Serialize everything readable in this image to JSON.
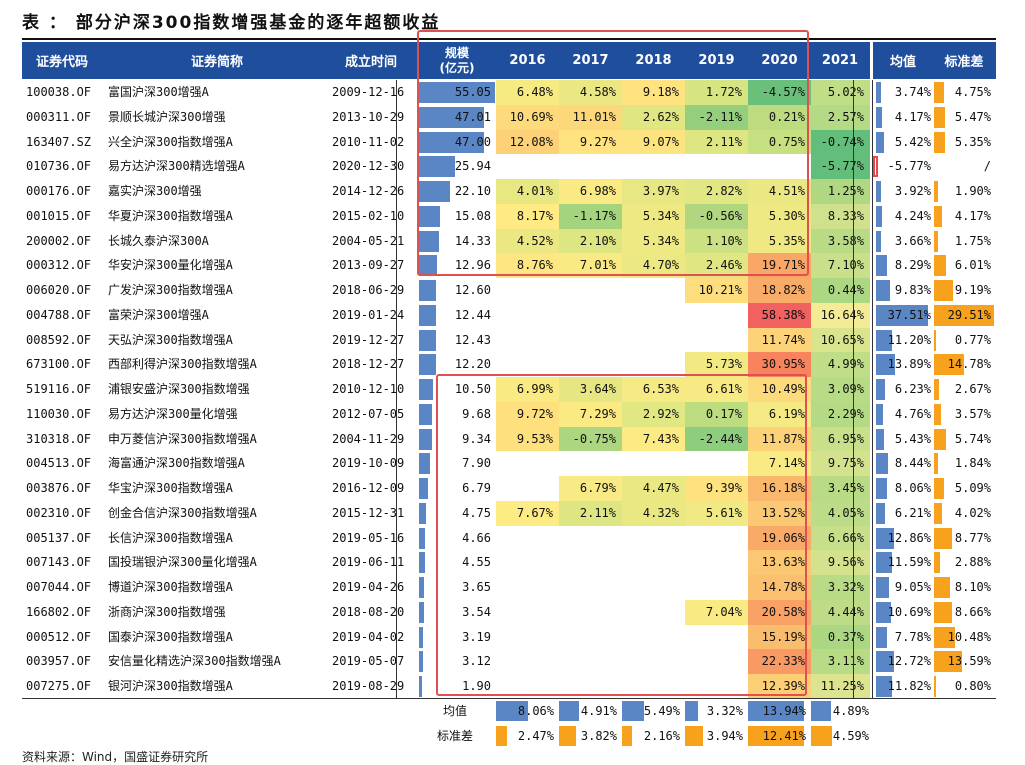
{
  "title": "表 ： 部分沪深300指数增强基金的逐年超额收益",
  "headers": {
    "code": "证券代码",
    "name": "证券简称",
    "date": "成立时间",
    "scale": "规模\n(亿元)",
    "y2016": "2016",
    "y2017": "2017",
    "y2018": "2018",
    "y2019": "2019",
    "y2020": "2020",
    "y2021": "2021",
    "mean": "均值",
    "std": "标准差"
  },
  "chart_data": {
    "type": "table",
    "columns": [
      "证券代码",
      "证券简称",
      "成立时间",
      "规模(亿元)",
      "2016",
      "2017",
      "2018",
      "2019",
      "2020",
      "2021",
      "均值",
      "标准差"
    ],
    "rows": [
      {
        "code": "100038.OF",
        "name": "富国沪深300增强A",
        "date": "2009-12-16",
        "scale": "55.05",
        "y": [
          "6.48%",
          "4.58%",
          "9.18%",
          "1.72%",
          "-4.57%",
          "5.02%"
        ],
        "mean": "3.74%",
        "std": "4.75%"
      },
      {
        "code": "000311.OF",
        "name": "景顺长城沪深300增强",
        "date": "2013-10-29",
        "scale": "47.01",
        "y": [
          "10.69%",
          "11.01%",
          "2.62%",
          "-2.11%",
          "0.21%",
          "2.57%"
        ],
        "mean": "4.17%",
        "std": "5.47%"
      },
      {
        "code": "163407.SZ",
        "name": "兴全沪深300指数增强A",
        "date": "2010-11-02",
        "scale": "47.00",
        "y": [
          "12.08%",
          "9.27%",
          "9.07%",
          "2.11%",
          "0.75%",
          "-0.74%"
        ],
        "mean": "5.42%",
        "std": "5.35%"
      },
      {
        "code": "010736.OF",
        "name": "易方达沪深300精选增强A",
        "date": "2020-12-30",
        "scale": "25.94",
        "y": [
          "",
          "",
          "",
          "",
          "",
          "-5.77%"
        ],
        "mean": "-5.77%",
        "std": "/"
      },
      {
        "code": "000176.OF",
        "name": "嘉实沪深300增强",
        "date": "2014-12-26",
        "scale": "22.10",
        "y": [
          "4.01%",
          "6.98%",
          "3.97%",
          "2.82%",
          "4.51%",
          "1.25%"
        ],
        "mean": "3.92%",
        "std": "1.90%"
      },
      {
        "code": "001015.OF",
        "name": "华夏沪深300指数增强A",
        "date": "2015-02-10",
        "scale": "15.08",
        "y": [
          "8.17%",
          "-1.17%",
          "5.34%",
          "-0.56%",
          "5.30%",
          "8.33%"
        ],
        "mean": "4.24%",
        "std": "4.17%"
      },
      {
        "code": "200002.OF",
        "name": "长城久泰沪深300A",
        "date": "2004-05-21",
        "scale": "14.33",
        "y": [
          "4.52%",
          "2.10%",
          "5.34%",
          "1.10%",
          "5.35%",
          "3.58%"
        ],
        "mean": "3.66%",
        "std": "1.75%"
      },
      {
        "code": "000312.OF",
        "name": "华安沪深300量化增强A",
        "date": "2013-09-27",
        "scale": "12.96",
        "y": [
          "8.76%",
          "7.01%",
          "4.70%",
          "2.46%",
          "19.71%",
          "7.10%"
        ],
        "mean": "8.29%",
        "std": "6.01%"
      },
      {
        "code": "006020.OF",
        "name": "广发沪深300指数增强A",
        "date": "2018-06-29",
        "scale": "12.60",
        "y": [
          "",
          "",
          "",
          "10.21%",
          "18.82%",
          "0.44%"
        ],
        "mean": "9.83%",
        "std": "9.19%"
      },
      {
        "code": "004788.OF",
        "name": "富荣沪深300增强A",
        "date": "2019-01-24",
        "scale": "12.44",
        "y": [
          "",
          "",
          "",
          "",
          "58.38%",
          "16.64%"
        ],
        "mean": "37.51%",
        "std": "29.51%"
      },
      {
        "code": "008592.OF",
        "name": "天弘沪深300指数增强A",
        "date": "2019-12-27",
        "scale": "12.43",
        "y": [
          "",
          "",
          "",
          "",
          "11.74%",
          "10.65%"
        ],
        "mean": "11.20%",
        "std": "0.77%"
      },
      {
        "code": "673100.OF",
        "name": "西部利得沪深300指数增强A",
        "date": "2018-12-27",
        "scale": "12.20",
        "y": [
          "",
          "",
          "",
          "5.73%",
          "30.95%",
          "4.99%"
        ],
        "mean": "13.89%",
        "std": "14.78%"
      },
      {
        "code": "519116.OF",
        "name": "浦银安盛沪深300指数增强",
        "date": "2010-12-10",
        "scale": "10.50",
        "y": [
          "6.99%",
          "3.64%",
          "6.53%",
          "6.61%",
          "10.49%",
          "3.09%"
        ],
        "mean": "6.23%",
        "std": "2.67%"
      },
      {
        "code": "110030.OF",
        "name": "易方达沪深300量化增强",
        "date": "2012-07-05",
        "scale": "9.68",
        "y": [
          "9.72%",
          "7.29%",
          "2.92%",
          "0.17%",
          "6.19%",
          "2.29%"
        ],
        "mean": "4.76%",
        "std": "3.57%"
      },
      {
        "code": "310318.OF",
        "name": "申万菱信沪深300指数增强A",
        "date": "2004-11-29",
        "scale": "9.34",
        "y": [
          "9.53%",
          "-0.75%",
          "7.43%",
          "-2.44%",
          "11.87%",
          "6.95%"
        ],
        "mean": "5.43%",
        "std": "5.74%"
      },
      {
        "code": "004513.OF",
        "name": "海富通沪深300指数增强A",
        "date": "2019-10-09",
        "scale": "7.90",
        "y": [
          "",
          "",
          "",
          "",
          "7.14%",
          "9.75%"
        ],
        "mean": "8.44%",
        "std": "1.84%"
      },
      {
        "code": "003876.OF",
        "name": "华宝沪深300指数增强A",
        "date": "2016-12-09",
        "scale": "6.79",
        "y": [
          "",
          "6.79%",
          "4.47%",
          "9.39%",
          "16.18%",
          "3.45%"
        ],
        "mean": "8.06%",
        "std": "5.09%"
      },
      {
        "code": "002310.OF",
        "name": "创金合信沪深300指数增强A",
        "date": "2015-12-31",
        "scale": "4.75",
        "y": [
          "7.67%",
          "2.11%",
          "4.32%",
          "5.61%",
          "13.52%",
          "4.05%"
        ],
        "mean": "6.21%",
        "std": "4.02%"
      },
      {
        "code": "005137.OF",
        "name": "长信沪深300指数增强A",
        "date": "2019-05-16",
        "scale": "4.66",
        "y": [
          "",
          "",
          "",
          "",
          "19.06%",
          "6.66%"
        ],
        "mean": "12.86%",
        "std": "8.77%"
      },
      {
        "code": "007143.OF",
        "name": "国投瑞银沪深300量化增强A",
        "date": "2019-06-11",
        "scale": "4.55",
        "y": [
          "",
          "",
          "",
          "",
          "13.63%",
          "9.56%"
        ],
        "mean": "11.59%",
        "std": "2.88%"
      },
      {
        "code": "007044.OF",
        "name": "博道沪深300指数增强A",
        "date": "2019-04-26",
        "scale": "3.65",
        "y": [
          "",
          "",
          "",
          "",
          "14.78%",
          "3.32%"
        ],
        "mean": "9.05%",
        "std": "8.10%"
      },
      {
        "code": "166802.OF",
        "name": "浙商沪深300指数增强",
        "date": "2018-08-20",
        "scale": "3.54",
        "y": [
          "",
          "",
          "",
          "7.04%",
          "20.58%",
          "4.44%"
        ],
        "mean": "10.69%",
        "std": "8.66%"
      },
      {
        "code": "000512.OF",
        "name": "国泰沪深300指数增强A",
        "date": "2019-04-02",
        "scale": "3.19",
        "y": [
          "",
          "",
          "",
          "",
          "15.19%",
          "0.37%"
        ],
        "mean": "7.78%",
        "std": "10.48%"
      },
      {
        "code": "003957.OF",
        "name": "安信量化精选沪深300指数增强A",
        "date": "2019-05-07",
        "scale": "3.12",
        "y": [
          "",
          "",
          "",
          "",
          "22.33%",
          "3.11%"
        ],
        "mean": "12.72%",
        "std": "13.59%"
      },
      {
        "code": "007275.OF",
        "name": "银河沪深300指数增强A",
        "date": "2019-08-29",
        "scale": "1.90",
        "y": [
          "",
          "",
          "",
          "",
          "12.39%",
          "11.25%"
        ],
        "mean": "11.82%",
        "std": "0.80%"
      }
    ],
    "summary": {
      "mean_label": "均值",
      "std_label": "标准差",
      "mean": [
        "8.06%",
        "4.91%",
        "5.49%",
        "3.32%",
        "13.94%",
        "4.89%"
      ],
      "std": [
        "2.47%",
        "3.82%",
        "2.16%",
        "3.94%",
        "12.41%",
        "4.59%"
      ]
    }
  },
  "source": "资料来源：Wind，国盛证券研究所"
}
